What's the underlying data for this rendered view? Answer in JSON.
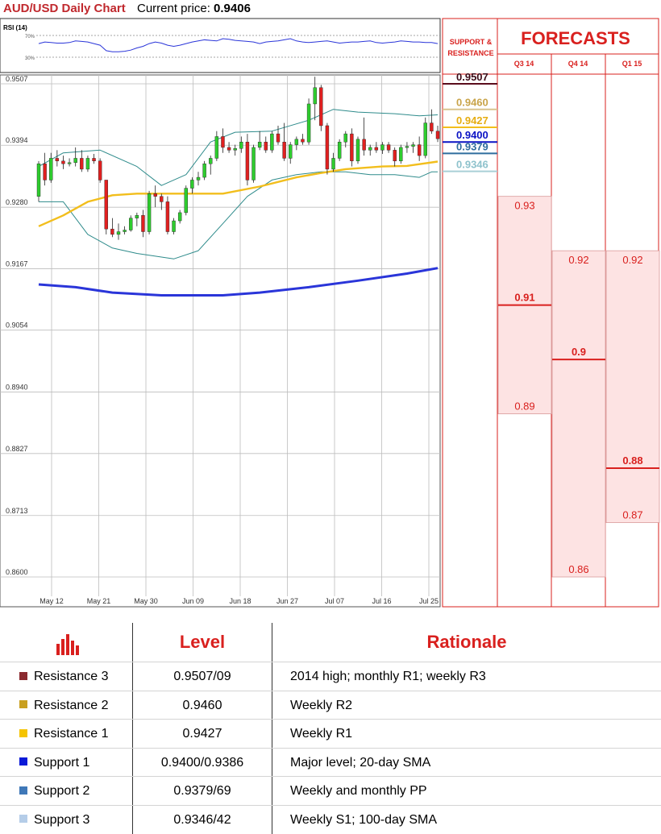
{
  "header": {
    "title": "AUD/USD Daily Chart",
    "price_label": "Current price:",
    "price_value": "0.9406"
  },
  "rsi": {
    "label": "RSI (14)",
    "upper": "70%",
    "lower": "30%"
  },
  "forecasts": {
    "title": "FORECASTS",
    "sr_title_1": "SUPPORT &",
    "sr_title_2": "RESISTANCE",
    "columns": [
      "Q3 14",
      "Q4 14",
      "Q1 15"
    ],
    "ranges": [
      {
        "high": 0.93,
        "mid": 0.91,
        "low": 0.89,
        "high_label": "0.93",
        "mid_label": "0.91",
        "low_label": "0.89"
      },
      {
        "high": 0.92,
        "mid": 0.9,
        "low": 0.86,
        "high_label": "0.92",
        "mid_label": "0.9",
        "low_label": "0.86"
      },
      {
        "high": 0.92,
        "mid": 0.88,
        "low": 0.87,
        "high_label": "0.92",
        "mid_label": "0.88",
        "low_label": "0.87"
      }
    ]
  },
  "levels": [
    {
      "value": 0.9507,
      "label": "0.9507",
      "color": "#5b0c1c",
      "text_color": "#3b0a16"
    },
    {
      "value": 0.946,
      "label": "0.9460",
      "color": "#d9c38e",
      "text_color": "#c9a44a"
    },
    {
      "value": 0.9427,
      "label": "0.9427",
      "color": "#f2be1c",
      "text_color": "#e6ad12"
    },
    {
      "value": 0.94,
      "label": "0.9400",
      "color": "#0a12c4",
      "text_color": "#0a12c4"
    },
    {
      "value": 0.9379,
      "label": "0.9379",
      "color": "#2f6d9e",
      "text_color": "#2f6d9e"
    },
    {
      "value": 0.9346,
      "label": "0.9346",
      "color": "#a9cfd6",
      "text_color": "#8ec2cc"
    }
  ],
  "table": {
    "col_level": "Level",
    "col_rationale": "Rationale",
    "rows": [
      {
        "name": "Resistance 3",
        "level": "0.9507/09",
        "rationale": "2014 high; monthly R1; weekly R3",
        "color": "#8b2a2f"
      },
      {
        "name": "Resistance 2",
        "level": "0.9460",
        "rationale": "Weekly R2",
        "color": "#c9a020"
      },
      {
        "name": "Resistance 1",
        "level": "0.9427",
        "rationale": "Weekly R1",
        "color": "#f5c400"
      },
      {
        "name": "Support 1",
        "level": "0.9400/0.9386",
        "rationale": "Major level; 20-day SMA",
        "color": "#0a1ad8"
      },
      {
        "name": "Support 2",
        "level": "0.9379/69",
        "rationale": "Weekly and monthly PP",
        "color": "#3f78b8"
      },
      {
        "name": "Support 3",
        "level": "0.9346/42",
        "rationale": "Weekly S1; 100-day SMA",
        "color": "#b5cde8"
      }
    ]
  },
  "chart_data": {
    "type": "candlestick",
    "title": "AUD/USD Daily Chart",
    "y_ticks": [
      "0.9507",
      "0.9394",
      "0.9280",
      "0.9167",
      "0.9054",
      "0.8940",
      "0.8827",
      "0.8713",
      "0.8600"
    ],
    "ylim": [
      0.86,
      0.9507
    ],
    "x_ticks": [
      "May 12",
      "May 21",
      "May 30",
      "Jun 09",
      "Jun 18",
      "Jun 27",
      "Jul 07",
      "Jul 16",
      "Jul 25"
    ],
    "candles": [
      [
        0.93,
        0.9365,
        0.929,
        0.936
      ],
      [
        0.936,
        0.938,
        0.932,
        0.933
      ],
      [
        0.933,
        0.938,
        0.9325,
        0.937
      ],
      [
        0.937,
        0.9385,
        0.9355,
        0.9365
      ],
      [
        0.9365,
        0.9375,
        0.935,
        0.936
      ],
      [
        0.936,
        0.937,
        0.9355,
        0.9362
      ],
      [
        0.9362,
        0.939,
        0.9355,
        0.937
      ],
      [
        0.937,
        0.9385,
        0.9345,
        0.935
      ],
      [
        0.935,
        0.9375,
        0.9345,
        0.937
      ],
      [
        0.937,
        0.9378,
        0.936,
        0.9365
      ],
      [
        0.9365,
        0.937,
        0.9325,
        0.933
      ],
      [
        0.933,
        0.933,
        0.923,
        0.924
      ],
      [
        0.924,
        0.926,
        0.9225,
        0.923
      ],
      [
        0.923,
        0.925,
        0.922,
        0.9235
      ],
      [
        0.9235,
        0.9245,
        0.923,
        0.9238
      ],
      [
        0.9238,
        0.9265,
        0.9235,
        0.926
      ],
      [
        0.926,
        0.927,
        0.9245,
        0.9265
      ],
      [
        0.9265,
        0.9275,
        0.9225,
        0.9235
      ],
      [
        0.9235,
        0.931,
        0.923,
        0.9305
      ],
      [
        0.9305,
        0.932,
        0.928,
        0.93
      ],
      [
        0.93,
        0.9305,
        0.9275,
        0.929
      ],
      [
        0.929,
        0.93,
        0.923,
        0.9235
      ],
      [
        0.9235,
        0.926,
        0.923,
        0.9255
      ],
      [
        0.9255,
        0.9275,
        0.925,
        0.927
      ],
      [
        0.927,
        0.932,
        0.9265,
        0.9315
      ],
      [
        0.9315,
        0.9335,
        0.9305,
        0.933
      ],
      [
        0.933,
        0.9345,
        0.932,
        0.9335
      ],
      [
        0.9335,
        0.9365,
        0.933,
        0.936
      ],
      [
        0.936,
        0.9375,
        0.934,
        0.937
      ],
      [
        0.937,
        0.942,
        0.9365,
        0.941
      ],
      [
        0.941,
        0.9425,
        0.938,
        0.939
      ],
      [
        0.939,
        0.94,
        0.938,
        0.9385
      ],
      [
        0.9385,
        0.9395,
        0.9375,
        0.9388
      ],
      [
        0.9388,
        0.941,
        0.938,
        0.94
      ],
      [
        0.94,
        0.9415,
        0.932,
        0.933
      ],
      [
        0.933,
        0.9395,
        0.9325,
        0.939
      ],
      [
        0.939,
        0.942,
        0.9385,
        0.94
      ],
      [
        0.94,
        0.941,
        0.938,
        0.9385
      ],
      [
        0.9385,
        0.942,
        0.938,
        0.9415
      ],
      [
        0.9415,
        0.943,
        0.9395,
        0.94
      ],
      [
        0.94,
        0.9435,
        0.9365,
        0.937
      ],
      [
        0.937,
        0.94,
        0.936,
        0.9395
      ],
      [
        0.9395,
        0.941,
        0.9385,
        0.9405
      ],
      [
        0.9405,
        0.9415,
        0.9395,
        0.94
      ],
      [
        0.94,
        0.948,
        0.9395,
        0.947
      ],
      [
        0.947,
        0.952,
        0.944,
        0.95
      ],
      [
        0.95,
        0.9505,
        0.942,
        0.943
      ],
      [
        0.943,
        0.9435,
        0.934,
        0.935
      ],
      [
        0.935,
        0.938,
        0.9345,
        0.937
      ],
      [
        0.937,
        0.9405,
        0.9365,
        0.94
      ],
      [
        0.94,
        0.942,
        0.939,
        0.9415
      ],
      [
        0.9415,
        0.9425,
        0.9355,
        0.9365
      ],
      [
        0.9365,
        0.941,
        0.936,
        0.9405
      ],
      [
        0.9405,
        0.9445,
        0.9375,
        0.9385
      ],
      [
        0.9385,
        0.9395,
        0.9375,
        0.939
      ],
      [
        0.939,
        0.94,
        0.938,
        0.9385
      ],
      [
        0.9385,
        0.94,
        0.9378,
        0.9395
      ],
      [
        0.9395,
        0.94,
        0.938,
        0.9385
      ],
      [
        0.9385,
        0.939,
        0.9355,
        0.9365
      ],
      [
        0.9365,
        0.9395,
        0.936,
        0.939
      ],
      [
        0.939,
        0.94,
        0.938,
        0.9392
      ],
      [
        0.9392,
        0.94,
        0.938,
        0.9395
      ],
      [
        0.9395,
        0.941,
        0.9365,
        0.9375
      ],
      [
        0.9375,
        0.9445,
        0.937,
        0.9435
      ],
      [
        0.9435,
        0.946,
        0.9415,
        0.942
      ],
      [
        0.942,
        0.943,
        0.94,
        0.9406
      ]
    ],
    "series": [
      {
        "name": "",
        "color": "#2e8b8b",
        "values": [
          [
            0,
            0.9355
          ],
          [
            4,
            0.938
          ],
          [
            10,
            0.9385
          ],
          [
            16,
            0.9355
          ],
          [
            20,
            0.932
          ],
          [
            24,
            0.934
          ],
          [
            28,
            0.94
          ],
          [
            32,
            0.9418
          ],
          [
            38,
            0.942
          ],
          [
            44,
            0.944
          ],
          [
            48,
            0.946
          ],
          [
            52,
            0.9455
          ],
          [
            58,
            0.9452
          ],
          [
            62,
            0.9448
          ],
          [
            65,
            0.945
          ]
        ]
      },
      {
        "name": "",
        "color": "#2e8b8b",
        "values": [
          [
            0,
            0.929
          ],
          [
            4,
            0.929
          ],
          [
            8,
            0.923
          ],
          [
            12,
            0.9205
          ],
          [
            16,
            0.9195
          ],
          [
            22,
            0.9185
          ],
          [
            26,
            0.92
          ],
          [
            30,
            0.925
          ],
          [
            34,
            0.93
          ],
          [
            38,
            0.933
          ],
          [
            42,
            0.934
          ],
          [
            46,
            0.9345
          ],
          [
            50,
            0.9345
          ],
          [
            54,
            0.934
          ],
          [
            58,
            0.934
          ],
          [
            62,
            0.9335
          ],
          [
            64,
            0.9345
          ],
          [
            65,
            0.9345
          ]
        ]
      },
      {
        "name": "",
        "color": "#f2be1c",
        "values": [
          [
            0,
            0.9245
          ],
          [
            4,
            0.9265
          ],
          [
            8,
            0.929
          ],
          [
            12,
            0.9302
          ],
          [
            16,
            0.9305
          ],
          [
            24,
            0.9305
          ],
          [
            30,
            0.9305
          ],
          [
            36,
            0.9318
          ],
          [
            42,
            0.9335
          ],
          [
            46,
            0.9343
          ],
          [
            50,
            0.935
          ],
          [
            56,
            0.9355
          ],
          [
            60,
            0.9356
          ],
          [
            65,
            0.9364
          ]
        ]
      },
      {
        "name": "",
        "color": "#2a35d9",
        "values": [
          [
            0,
            0.9138
          ],
          [
            6,
            0.9133
          ],
          [
            12,
            0.9123
          ],
          [
            20,
            0.9118
          ],
          [
            30,
            0.9118
          ],
          [
            36,
            0.9123
          ],
          [
            44,
            0.9133
          ],
          [
            52,
            0.9145
          ],
          [
            60,
            0.9158
          ],
          [
            65,
            0.9168
          ]
        ]
      }
    ],
    "rsi": [
      55,
      58,
      57,
      56,
      56,
      57,
      60,
      59,
      58,
      55,
      52,
      42,
      40,
      40,
      41,
      43,
      47,
      50,
      55,
      58,
      56,
      52,
      50,
      52,
      55,
      58,
      60,
      62,
      61,
      60,
      64,
      63,
      61,
      60,
      59,
      58,
      55,
      58,
      59,
      60,
      62,
      64,
      60,
      58,
      57,
      58,
      59,
      60,
      58,
      56,
      57,
      58,
      58,
      59,
      60,
      57,
      56,
      57,
      58,
      60,
      59,
      58,
      58,
      57,
      57,
      55
    ]
  }
}
